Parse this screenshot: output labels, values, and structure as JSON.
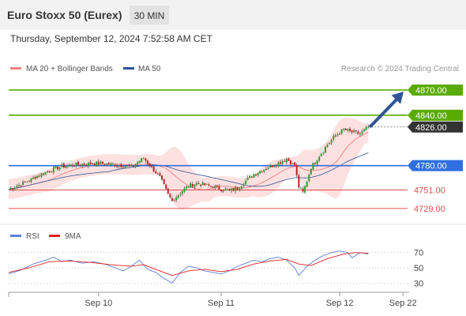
{
  "header": {
    "title": "Euro Stoxx 50 (Eurex)",
    "timeframe": "30 MIN",
    "datetime": "Thursday, September 12, 2024 7:52:58 AM CET"
  },
  "legend": {
    "items": [
      {
        "label": "MA 20 + Bollinger Bands",
        "color": "#f08080"
      },
      {
        "label": "MA 50",
        "color": "#2f5597"
      }
    ],
    "copyright": "Research © 2024 Trading Central"
  },
  "colors": {
    "resistance": "#5aab00",
    "current": "#333333",
    "pivot": "#2f6fe0",
    "support": "#e05050",
    "band_fill": "#fde0e0",
    "candle_up": "#2aa02a",
    "candle_down": "#c02020",
    "arrow": "#2f5597",
    "rsi": "#5b7fd8",
    "rsi_ma": "#e02020"
  },
  "chart_data": [
    {
      "type": "candlestick",
      "title": "Euro Stoxx 50 (Eurex)",
      "timeframe": "30 MIN",
      "ylim": [
        4712,
        4885
      ],
      "levels": [
        {
          "value": 4870,
          "label": "4870.00",
          "kind": "resistance"
        },
        {
          "value": 4840,
          "label": "4840.00",
          "kind": "resistance"
        },
        {
          "value": 4826,
          "label": "4826.00",
          "kind": "current"
        },
        {
          "value": 4780,
          "label": "4780.00",
          "kind": "pivot"
        },
        {
          "value": 4751,
          "label": "4751.00",
          "kind": "support"
        },
        {
          "value": 4729,
          "label": "4729.00",
          "kind": "support"
        }
      ],
      "price_path": [
        [
          0,
          4752
        ],
        [
          5,
          4757
        ],
        [
          10,
          4762
        ],
        [
          14,
          4768
        ],
        [
          18,
          4772
        ],
        [
          22,
          4776
        ],
        [
          26,
          4779
        ],
        [
          32,
          4781
        ],
        [
          38,
          4782
        ],
        [
          44,
          4783
        ],
        [
          48,
          4782
        ],
        [
          52,
          4781
        ],
        [
          56,
          4780
        ],
        [
          60,
          4778
        ],
        [
          62,
          4782
        ],
        [
          66,
          4789
        ],
        [
          70,
          4778
        ],
        [
          74,
          4766
        ],
        [
          76,
          4756
        ],
        [
          78,
          4745
        ],
        [
          80,
          4738
        ],
        [
          84,
          4748
        ],
        [
          88,
          4756
        ],
        [
          92,
          4759
        ],
        [
          96,
          4757
        ],
        [
          100,
          4755
        ],
        [
          104,
          4752
        ],
        [
          108,
          4750
        ],
        [
          112,
          4753
        ],
        [
          116,
          4762
        ],
        [
          120,
          4770
        ],
        [
          124,
          4775
        ],
        [
          128,
          4779
        ],
        [
          132,
          4783
        ],
        [
          136,
          4788
        ],
        [
          140,
          4780
        ],
        [
          142,
          4755
        ],
        [
          144,
          4748
        ],
        [
          146,
          4762
        ],
        [
          148,
          4778
        ],
        [
          152,
          4792
        ],
        [
          156,
          4805
        ],
        [
          160,
          4816
        ],
        [
          164,
          4823
        ],
        [
          168,
          4820
        ],
        [
          172,
          4818
        ],
        [
          176,
          4826
        ]
      ],
      "forecast": {
        "from": 4826,
        "to": 4870
      },
      "x_ticks": [
        {
          "label": "Sep 10",
          "index": 44
        },
        {
          "label": "Sep 11",
          "index": 104
        },
        {
          "label": "Sep 12",
          "index": 162
        },
        {
          "label": "Sep 22",
          "index": 193
        }
      ]
    },
    {
      "type": "line",
      "title": "RSI",
      "ylim": [
        20,
        80
      ],
      "y_ticks": [
        70,
        50,
        30
      ],
      "series": [
        {
          "name": "RSI",
          "points": [
            [
              0,
              42
            ],
            [
              6,
              47
            ],
            [
              12,
              55
            ],
            [
              18,
              60
            ],
            [
              22,
              64
            ],
            [
              26,
              58
            ],
            [
              30,
              60
            ],
            [
              36,
              56
            ],
            [
              42,
              58
            ],
            [
              48,
              54
            ],
            [
              52,
              50
            ],
            [
              56,
              46
            ],
            [
              60,
              52
            ],
            [
              64,
              60
            ],
            [
              68,
              48
            ],
            [
              72,
              44
            ],
            [
              76,
              36
            ],
            [
              80,
              30
            ],
            [
              84,
              44
            ],
            [
              88,
              52
            ],
            [
              92,
              50
            ],
            [
              96,
              46
            ],
            [
              100,
              44
            ],
            [
              104,
              42
            ],
            [
              108,
              46
            ],
            [
              112,
              52
            ],
            [
              116,
              56
            ],
            [
              120,
              60
            ],
            [
              124,
              58
            ],
            [
              128,
              62
            ],
            [
              132,
              64
            ],
            [
              136,
              60
            ],
            [
              140,
              50
            ],
            [
              142,
              40
            ],
            [
              146,
              52
            ],
            [
              150,
              60
            ],
            [
              154,
              66
            ],
            [
              158,
              70
            ],
            [
              162,
              72
            ],
            [
              166,
              70
            ],
            [
              168,
              63
            ],
            [
              172,
              70
            ],
            [
              176,
              68
            ]
          ]
        },
        {
          "name": "9MA",
          "points": [
            [
              0,
              44
            ],
            [
              10,
              50
            ],
            [
              20,
              58
            ],
            [
              30,
              59
            ],
            [
              40,
              57
            ],
            [
              50,
              54
            ],
            [
              60,
              52
            ],
            [
              66,
              54
            ],
            [
              72,
              48
            ],
            [
              80,
              40
            ],
            [
              88,
              46
            ],
            [
              96,
              48
            ],
            [
              104,
              45
            ],
            [
              112,
              48
            ],
            [
              120,
              55
            ],
            [
              128,
              59
            ],
            [
              136,
              61
            ],
            [
              142,
              55
            ],
            [
              148,
              53
            ],
            [
              156,
              62
            ],
            [
              164,
              68
            ],
            [
              170,
              70
            ],
            [
              176,
              69
            ]
          ]
        }
      ]
    }
  ]
}
